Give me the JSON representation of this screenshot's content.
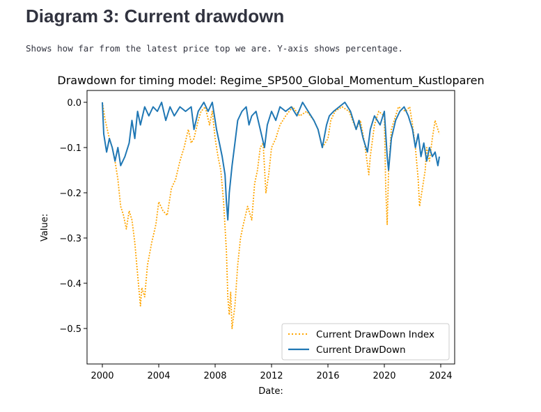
{
  "header": {
    "title": "Diagram 3: Current drawdown",
    "caption": "Shows how far from the latest price top we are. Y-axis shows percentage."
  },
  "colors": {
    "index_series": "#ffa500",
    "strategy_series": "#1f77b4",
    "text": "#31333f"
  },
  "chart_data": {
    "type": "line",
    "title": "Drawdown for timing model: Regime_SP500_Global_Momentum_Kustloparen",
    "xlabel": "Date:",
    "ylabel": "Value:",
    "xlim": [
      2000.0,
      2024.0
    ],
    "ylim": [
      -0.5,
      0.0
    ],
    "x_ticks": [
      2000,
      2004,
      2008,
      2012,
      2016,
      2020,
      2024
    ],
    "x_tick_labels": [
      "2000",
      "2004",
      "2008",
      "2012",
      "2016",
      "2020",
      "2024"
    ],
    "y_ticks": [
      0.0,
      -0.1,
      -0.2,
      -0.3,
      -0.4,
      -0.5
    ],
    "y_tick_labels": [
      "0.0",
      "−0.1",
      "−0.2",
      "−0.3",
      "−0.4",
      "−0.5"
    ],
    "legend_position": "lower-right",
    "grid": false,
    "series": [
      {
        "name": "Current DrawDown Index",
        "style": "dotted",
        "color": "#ffa500",
        "x": [
          2000.0,
          2000.2,
          2000.5,
          2000.7,
          2000.9,
          2001.1,
          2001.3,
          2001.5,
          2001.7,
          2001.9,
          2002.1,
          2002.3,
          2002.5,
          2002.7,
          2002.8,
          2003.0,
          2003.2,
          2003.5,
          2003.8,
          2004.0,
          2004.3,
          2004.6,
          2004.9,
          2005.2,
          2005.5,
          2005.8,
          2006.1,
          2006.3,
          2006.5,
          2006.8,
          2007.0,
          2007.3,
          2007.6,
          2007.8,
          2008.0,
          2008.2,
          2008.4,
          2008.6,
          2008.8,
          2008.9,
          2009.0,
          2009.1,
          2009.2,
          2009.4,
          2009.6,
          2009.8,
          2010.0,
          2010.3,
          2010.6,
          2010.8,
          2011.0,
          2011.2,
          2011.4,
          2011.6,
          2011.8,
          2012.0,
          2012.3,
          2012.6,
          2013.0,
          2013.5,
          2014.0,
          2014.5,
          2015.0,
          2015.3,
          2015.6,
          2016.0,
          2016.2,
          2016.5,
          2017.0,
          2017.5,
          2018.0,
          2018.3,
          2018.6,
          2018.9,
          2019.0,
          2019.3,
          2019.6,
          2020.0,
          2020.1,
          2020.2,
          2020.3,
          2020.5,
          2020.8,
          2021.0,
          2021.5,
          2021.8,
          2022.0,
          2022.2,
          2022.4,
          2022.5,
          2022.7,
          2022.9,
          2023.0,
          2023.2,
          2023.4,
          2023.6,
          2023.8,
          2023.9
        ],
        "y": [
          0.0,
          -0.04,
          -0.08,
          -0.1,
          -0.13,
          -0.17,
          -0.23,
          -0.25,
          -0.28,
          -0.24,
          -0.26,
          -0.31,
          -0.38,
          -0.45,
          -0.41,
          -0.43,
          -0.36,
          -0.31,
          -0.27,
          -0.22,
          -0.24,
          -0.25,
          -0.19,
          -0.17,
          -0.13,
          -0.1,
          -0.06,
          -0.09,
          -0.08,
          -0.04,
          -0.02,
          -0.01,
          -0.05,
          -0.02,
          -0.08,
          -0.12,
          -0.15,
          -0.22,
          -0.33,
          -0.43,
          -0.47,
          -0.42,
          -0.5,
          -0.45,
          -0.36,
          -0.3,
          -0.27,
          -0.23,
          -0.26,
          -0.18,
          -0.15,
          -0.1,
          -0.09,
          -0.2,
          -0.16,
          -0.1,
          -0.08,
          -0.05,
          -0.03,
          -0.01,
          -0.03,
          -0.02,
          -0.04,
          -0.06,
          -0.1,
          -0.08,
          -0.04,
          -0.02,
          -0.01,
          -0.02,
          -0.06,
          -0.04,
          -0.09,
          -0.16,
          -0.12,
          -0.05,
          -0.02,
          -0.03,
          -0.19,
          -0.27,
          -0.15,
          -0.06,
          -0.03,
          -0.01,
          -0.02,
          -0.01,
          -0.05,
          -0.1,
          -0.17,
          -0.23,
          -0.19,
          -0.15,
          -0.1,
          -0.13,
          -0.08,
          -0.04,
          -0.06,
          -0.07
        ]
      },
      {
        "name": "Current DrawDown",
        "style": "solid",
        "color": "#1f77b4",
        "x": [
          2000.0,
          2000.1,
          2000.3,
          2000.5,
          2000.7,
          2000.9,
          2001.1,
          2001.3,
          2001.6,
          2001.9,
          2002.1,
          2002.3,
          2002.5,
          2002.7,
          2003.0,
          2003.3,
          2003.6,
          2003.9,
          2004.2,
          2004.5,
          2004.8,
          2005.1,
          2005.5,
          2005.9,
          2006.3,
          2006.5,
          2006.8,
          2007.2,
          2007.5,
          2007.8,
          2008.1,
          2008.3,
          2008.5,
          2008.7,
          2008.8,
          2008.9,
          2009.0,
          2009.2,
          2009.4,
          2009.6,
          2009.9,
          2010.2,
          2010.4,
          2010.6,
          2010.9,
          2011.2,
          2011.5,
          2011.7,
          2012.0,
          2012.3,
          2012.6,
          2013.0,
          2013.4,
          2013.8,
          2014.2,
          2014.6,
          2015.0,
          2015.3,
          2015.6,
          2015.9,
          2016.1,
          2016.4,
          2016.8,
          2017.2,
          2017.6,
          2018.0,
          2018.2,
          2018.5,
          2018.8,
          2019.0,
          2019.3,
          2019.7,
          2020.0,
          2020.2,
          2020.3,
          2020.5,
          2020.8,
          2021.1,
          2021.4,
          2021.7,
          2022.0,
          2022.2,
          2022.4,
          2022.6,
          2022.8,
          2023.0,
          2023.2,
          2023.4,
          2023.6,
          2023.8,
          2023.9
        ],
        "y": [
          0.0,
          -0.07,
          -0.11,
          -0.08,
          -0.1,
          -0.13,
          -0.1,
          -0.14,
          -0.12,
          -0.09,
          -0.04,
          -0.08,
          -0.02,
          -0.05,
          -0.01,
          -0.03,
          -0.01,
          -0.02,
          0.0,
          -0.04,
          -0.01,
          -0.03,
          -0.01,
          -0.02,
          -0.01,
          -0.06,
          -0.02,
          0.0,
          -0.02,
          0.0,
          -0.06,
          -0.09,
          -0.12,
          -0.16,
          -0.22,
          -0.26,
          -0.2,
          -0.14,
          -0.09,
          -0.04,
          -0.02,
          -0.01,
          -0.05,
          -0.03,
          -0.02,
          -0.06,
          -0.1,
          -0.05,
          -0.02,
          -0.04,
          -0.01,
          -0.02,
          -0.01,
          -0.03,
          0.0,
          -0.02,
          -0.04,
          -0.06,
          -0.1,
          -0.05,
          -0.03,
          -0.02,
          -0.01,
          0.0,
          -0.02,
          -0.06,
          -0.04,
          -0.08,
          -0.11,
          -0.06,
          -0.03,
          -0.05,
          -0.02,
          -0.12,
          -0.15,
          -0.08,
          -0.04,
          -0.02,
          -0.01,
          -0.03,
          -0.06,
          -0.1,
          -0.07,
          -0.12,
          -0.09,
          -0.13,
          -0.1,
          -0.12,
          -0.11,
          -0.14,
          -0.12
        ]
      }
    ]
  }
}
